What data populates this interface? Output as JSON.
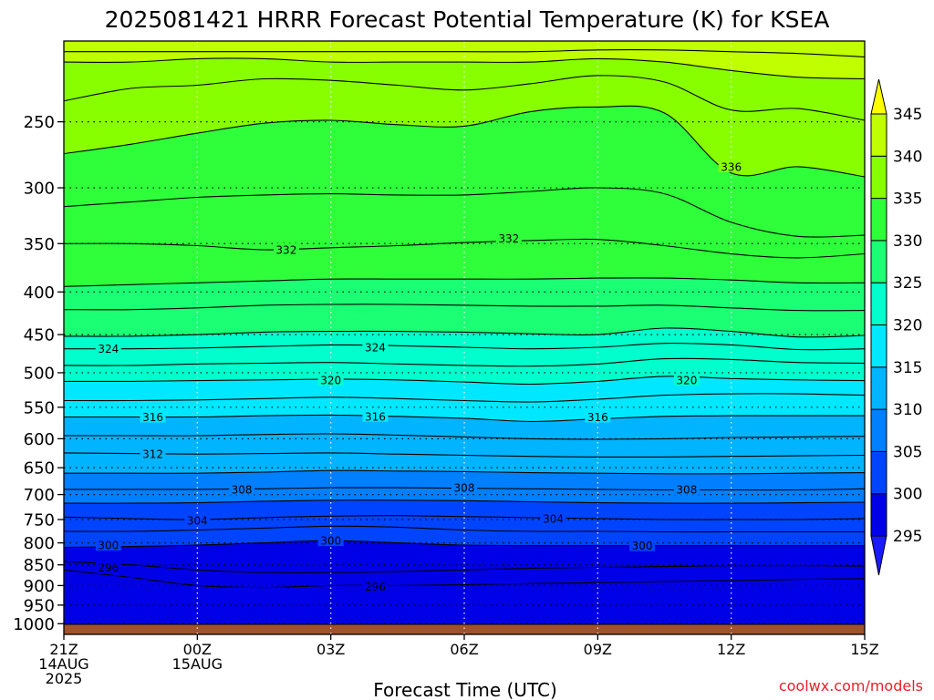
{
  "chart_data": {
    "type": "contour",
    "title": "2025081421 HRRR Forecast Potential Temperature (K) for KSEA",
    "xlabel": "Forecast Time (UTC)",
    "ylabel": "",
    "y_axis": {
      "scale": "log-pressure",
      "range": [
        1030,
        200
      ],
      "ticks": [
        250,
        300,
        350,
        400,
        450,
        500,
        550,
        600,
        650,
        700,
        750,
        800,
        850,
        900,
        950,
        1000
      ],
      "tick_labels": [
        "250",
        "300",
        "350",
        "400",
        "450",
        "500",
        "550",
        "600",
        "650",
        "700",
        "750",
        "800",
        "850",
        "900",
        "950",
        "1000"
      ],
      "gridlines": "dotted"
    },
    "x_axis": {
      "range": [
        0,
        18
      ],
      "unit": "hours from 21Z 14AUG 2025",
      "ticks": [
        {
          "hour": 0,
          "lines": [
            "21Z",
            "14AUG",
            "2025"
          ]
        },
        {
          "hour": 3,
          "lines": [
            "00Z",
            "15AUG"
          ]
        },
        {
          "hour": 6,
          "lines": [
            "03Z"
          ]
        },
        {
          "hour": 9,
          "lines": [
            "06Z"
          ]
        },
        {
          "hour": 12,
          "lines": [
            "09Z"
          ]
        },
        {
          "hour": 15,
          "lines": [
            "12Z"
          ]
        },
        {
          "hour": 18,
          "lines": [
            "15Z"
          ]
        }
      ],
      "gridlines": "dotted"
    },
    "colorbar": {
      "levels": [
        295,
        300,
        305,
        310,
        315,
        320,
        325,
        330,
        335,
        340,
        345
      ],
      "tick_labels": [
        "295",
        "300",
        "305",
        "310",
        "315",
        "320",
        "325",
        "330",
        "335",
        "340",
        "345"
      ],
      "colors": [
        "#1a1aff",
        "#0000e6",
        "#0044ff",
        "#007fff",
        "#00b4ff",
        "#00e8ff",
        "#00ffcc",
        "#1bff74",
        "#2eff3a",
        "#88ff00",
        "#bfff00",
        "#ffff00"
      ],
      "extend": "both"
    },
    "ground_color": "#a0522d",
    "contours": [
      {
        "theta": 296,
        "pressure": [
          862,
          880,
          900,
          905,
          900,
          900,
          898,
          895,
          893,
          890,
          888,
          885,
          883
        ],
        "labels": [
          {
            "hour": 1.0,
            "pressure": 856
          },
          {
            "hour": 7.0,
            "pressure": 902
          }
        ]
      },
      {
        "theta": 298,
        "pressure": [
          842,
          850,
          862,
          868,
          868,
          866,
          862,
          858,
          856,
          854,
          852,
          852,
          853
        ]
      },
      {
        "theta": 300,
        "pressure": [
          810,
          808,
          805,
          800,
          795,
          800,
          805,
          806,
          806,
          806,
          806,
          806,
          806
        ],
        "labels": [
          {
            "hour": 1.0,
            "pressure": 805
          },
          {
            "hour": 6.0,
            "pressure": 795
          },
          {
            "hour": 13.0,
            "pressure": 806
          }
        ]
      },
      {
        "theta": 302,
        "pressure": [
          775,
          775,
          772,
          768,
          764,
          766,
          772,
          775,
          775,
          776,
          776,
          776,
          776
        ]
      },
      {
        "theta": 304,
        "pressure": [
          745,
          748,
          750,
          746,
          743,
          742,
          744,
          746,
          748,
          750,
          750,
          750,
          748
        ],
        "labels": [
          {
            "hour": 3.0,
            "pressure": 752
          },
          {
            "hour": 11.0,
            "pressure": 748
          }
        ]
      },
      {
        "theta": 306,
        "pressure": [
          717,
          717,
          716,
          713,
          711,
          711,
          712,
          714,
          716,
          717,
          717,
          716,
          715
        ]
      },
      {
        "theta": 308,
        "pressure": [
          690,
          690,
          690,
          689,
          687,
          687,
          688,
          689,
          690,
          691,
          691,
          691,
          689
        ],
        "labels": [
          {
            "hour": 4.0,
            "pressure": 690
          },
          {
            "hour": 9.0,
            "pressure": 687
          },
          {
            "hour": 14.0,
            "pressure": 690
          }
        ]
      },
      {
        "theta": 310,
        "pressure": [
          660,
          660,
          660,
          658,
          655,
          656,
          657,
          659,
          660,
          661,
          661,
          660,
          659
        ]
      },
      {
        "theta": 312,
        "pressure": [
          624,
          625,
          626,
          625,
          624,
          626,
          628,
          630,
          631,
          631,
          630,
          629,
          628
        ],
        "labels": [
          {
            "hour": 2.0,
            "pressure": 626
          }
        ]
      },
      {
        "theta": 314,
        "pressure": [
          595,
          595,
          595,
          593,
          592,
          594,
          597,
          600,
          601,
          600,
          598,
          597,
          596
        ]
      },
      {
        "theta": 316,
        "pressure": [
          565,
          565,
          565,
          563,
          562,
          564,
          567,
          572,
          568,
          564,
          563,
          563,
          563
        ],
        "labels": [
          {
            "hour": 2.0,
            "pressure": 565
          },
          {
            "hour": 7.0,
            "pressure": 564
          },
          {
            "hour": 12.0,
            "pressure": 565
          }
        ]
      },
      {
        "theta": 318,
        "pressure": [
          540,
          540,
          539,
          537,
          535,
          537,
          540,
          542,
          538,
          532,
          530,
          530,
          532
        ]
      },
      {
        "theta": 320,
        "pressure": [
          512,
          512,
          511,
          510,
          509,
          510,
          513,
          516,
          512,
          505,
          508,
          510,
          511
        ],
        "labels": [
          {
            "hour": 6.0,
            "pressure": 510
          },
          {
            "hour": 14.0,
            "pressure": 510
          }
        ]
      },
      {
        "theta": 322,
        "pressure": [
          490,
          490,
          488,
          487,
          486,
          488,
          490,
          491,
          488,
          481,
          482,
          486,
          487
        ]
      },
      {
        "theta": 324,
        "pressure": [
          468,
          468,
          467,
          465,
          463,
          464,
          466,
          468,
          466,
          461,
          463,
          469,
          468
        ],
        "labels": [
          {
            "hour": 1.0,
            "pressure": 468
          },
          {
            "hour": 7.0,
            "pressure": 466
          }
        ]
      },
      {
        "theta": 326,
        "pressure": [
          452,
          452,
          450,
          447,
          446,
          446,
          447,
          449,
          450,
          442,
          446,
          453,
          451
        ]
      },
      {
        "theta": 328,
        "pressure": [
          420,
          420,
          418,
          415,
          414,
          414,
          415,
          416,
          416,
          415,
          418,
          421,
          421
        ]
      },
      {
        "theta": 330,
        "pressure": [
          394,
          392,
          390,
          388,
          386,
          386,
          386,
          386,
          385,
          385,
          387,
          390,
          390
        ]
      },
      {
        "theta": 332,
        "pressure": [
          350,
          350,
          352,
          356,
          354,
          352,
          349,
          347,
          346,
          352,
          360,
          364,
          360
        ],
        "labels": [
          {
            "hour": 5.0,
            "pressure": 356
          },
          {
            "hour": 10.0,
            "pressure": 345
          }
        ]
      },
      {
        "theta": 334,
        "pressure": [
          316,
          312,
          308,
          306,
          305,
          306,
          306,
          303,
          300,
          305,
          330,
          343,
          342
        ]
      },
      {
        "theta": 336,
        "pressure": [
          273,
          266,
          258,
          251,
          249,
          252,
          253,
          243,
          240,
          244,
          288,
          283,
          291
        ],
        "labels": [
          {
            "hour": 15.0,
            "pressure": 283
          }
        ]
      },
      {
        "theta": 338,
        "pressure": [
          236,
          228,
          226,
          222,
          223,
          226,
          229,
          225,
          220,
          224,
          242,
          241,
          249
        ]
      },
      {
        "theta": 340,
        "pressure": [
          212,
          212,
          210,
          210,
          212,
          212,
          212,
          212,
          210,
          212,
          217,
          221,
          222
        ]
      },
      {
        "theta": 342,
        "pressure": [
          206,
          206,
          206,
          206,
          206,
          206,
          206,
          206,
          205,
          205,
          206,
          207,
          209
        ]
      }
    ]
  },
  "credit": "coolwx.com/models"
}
